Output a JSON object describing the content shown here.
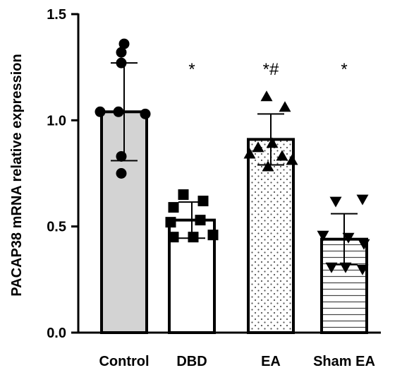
{
  "chart_data": {
    "type": "bar",
    "ylabel": "PACAP38 mRNA relative expression",
    "ylim": [
      0,
      1.5
    ],
    "yticks": [
      "0.0",
      "0.5",
      "1.0",
      "1.5"
    ],
    "categories": [
      "Control",
      "DBD",
      "EA",
      "Sham EA"
    ],
    "values": [
      1.04,
      0.53,
      0.91,
      0.44
    ],
    "errors": [
      0.23,
      0.085,
      0.12,
      0.12
    ],
    "significance": [
      "",
      "*",
      "*#",
      "*"
    ],
    "fills": [
      "gray",
      "white",
      "dotted",
      "striped"
    ],
    "markers": [
      "circle",
      "square",
      "triangle-up",
      "triangle-down"
    ],
    "points": [
      [
        1.36,
        1.32,
        1.27,
        1.04,
        1.04,
        1.03,
        0.83,
        0.75
      ],
      [
        0.65,
        0.62,
        0.59,
        0.53,
        0.52,
        0.45,
        0.46,
        0.45
      ],
      [
        1.11,
        1.06,
        0.84,
        0.89,
        0.83,
        0.78,
        0.81,
        0.87
      ],
      [
        0.62,
        0.63,
        0.46,
        0.45,
        0.42,
        0.31,
        0.3,
        0.31
      ]
    ],
    "grid": false,
    "legend": "none"
  }
}
